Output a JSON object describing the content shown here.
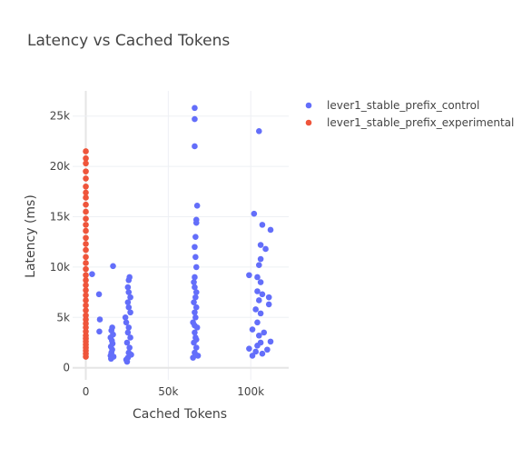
{
  "chart_data": {
    "type": "scatter",
    "title": "Latency vs Cached Tokens",
    "x_label": "Cached Tokens",
    "y_label": "Latency (ms)",
    "xlim": [
      -8000,
      123000
    ],
    "ylim": [
      -1200,
      27500
    ],
    "xticks": [
      0,
      {
        "value": 50000,
        "label": "50k"
      },
      {
        "value": 100000,
        "label": "100k"
      }
    ],
    "yticks": [
      0,
      {
        "value": 5000,
        "label": "5k"
      },
      {
        "value": 10000,
        "label": "10k"
      },
      {
        "value": 15000,
        "label": "15k"
      },
      {
        "value": 20000,
        "label": "20k"
      },
      {
        "value": 25000,
        "label": "25k"
      }
    ],
    "grid": true,
    "legend": "top-right",
    "series": [
      {
        "name": "lever1_stable_prefix_control",
        "color": "#636efa",
        "x": [
          3800,
          8000,
          8500,
          8200,
          16500,
          15000,
          15500,
          16000,
          15200,
          16200,
          15800,
          15000,
          16500,
          15500,
          16000,
          15300,
          16800,
          24000,
          25000,
          25500,
          26000,
          26500,
          25000,
          27000,
          25500,
          26000,
          24500,
          27000,
          26000,
          25500,
          27000,
          26000,
          25500,
          26000,
          26500,
          24500,
          27500,
          66000,
          66000,
          66000,
          67500,
          67000,
          67000,
          66500,
          66000,
          66500,
          67000,
          66000,
          65500,
          66000,
          67000,
          66500,
          65500,
          67000,
          66000,
          66500,
          65000,
          67500,
          66000,
          66500,
          65500,
          67000,
          66000,
          68000,
          65000,
          67000,
          66000,
          105000,
          102000,
          107000,
          106000,
          112000,
          109000,
          106000,
          105000,
          99000,
          104000,
          106000,
          104000,
          107000,
          111000,
          105000,
          111000,
          103000,
          106000,
          104000,
          101000,
          108000,
          105000,
          112000,
          99000,
          103000,
          107000,
          101000,
          110000,
          104000,
          106000
        ],
        "values": [
          9300,
          7300,
          4800,
          3600,
          10100,
          1200,
          1500,
          1800,
          2100,
          2400,
          2700,
          3000,
          3300,
          3700,
          4000,
          900,
          1100,
          5000,
          600,
          1000,
          1500,
          2000,
          2500,
          3000,
          3500,
          4000,
          4500,
          5500,
          6000,
          6500,
          7000,
          7500,
          8000,
          8700,
          9000,
          800,
          1300,
          25800,
          24700,
          22000,
          16100,
          14700,
          14400,
          13000,
          12000,
          11000,
          10000,
          9000,
          8500,
          8000,
          7500,
          7000,
          6500,
          6000,
          5500,
          5000,
          4500,
          4000,
          3500,
          3000,
          2500,
          2000,
          1500,
          1200,
          1000,
          2800,
          4200,
          23500,
          15300,
          14200,
          12200,
          13700,
          11800,
          10800,
          10200,
          9200,
          9000,
          8500,
          7600,
          7300,
          7000,
          6700,
          6300,
          5800,
          5400,
          4500,
          3800,
          3500,
          3200,
          2600,
          1900,
          1600,
          1400,
          1200,
          1800,
          2200,
          2500
        ]
      },
      {
        "name": "lever1_stable_prefix_experimental",
        "color": "#ef553b",
        "x": [
          0,
          0,
          0,
          0,
          0,
          0,
          0,
          0,
          0,
          0,
          0,
          0,
          0,
          0,
          0,
          0,
          0,
          0,
          0,
          0,
          0,
          0,
          0,
          0,
          0,
          0,
          0,
          0,
          0,
          0,
          0,
          0,
          0,
          0,
          0,
          0,
          0,
          0,
          0,
          0
        ],
        "values": [
          21500,
          20800,
          20300,
          19500,
          18800,
          18000,
          17400,
          16900,
          16200,
          15500,
          14800,
          14200,
          13600,
          12900,
          12300,
          11700,
          11000,
          10400,
          9800,
          9200,
          8700,
          8200,
          7700,
          7200,
          6700,
          6200,
          5700,
          5200,
          4800,
          4400,
          4000,
          3600,
          3200,
          2900,
          2600,
          2300,
          2000,
          1700,
          1400,
          1100
        ]
      }
    ]
  }
}
